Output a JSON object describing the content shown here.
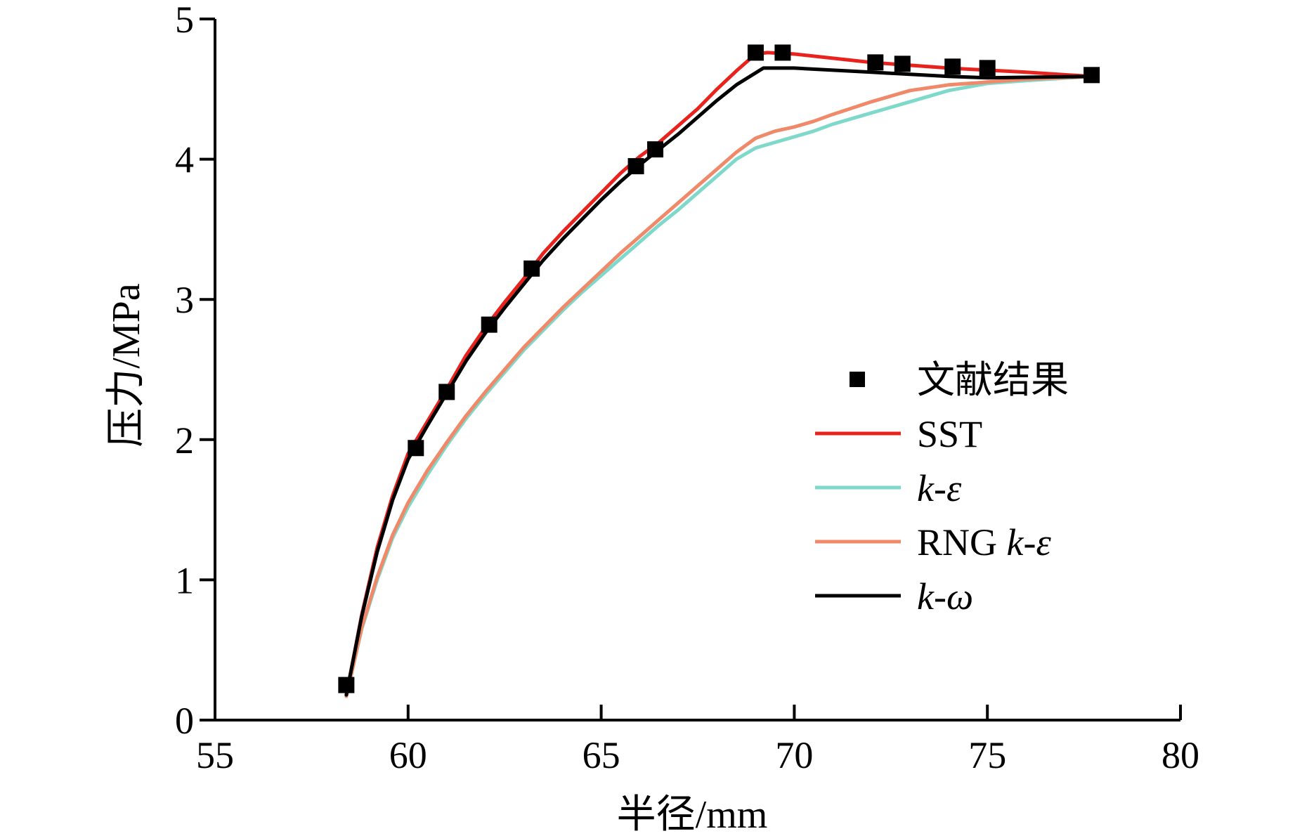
{
  "chart_data": {
    "type": "line",
    "xlabel": "半径/mm",
    "ylabel": "压力/MPa",
    "xlim": [
      55,
      80
    ],
    "ylim": [
      0,
      5
    ],
    "xticks": [
      55,
      60,
      65,
      70,
      75,
      80
    ],
    "yticks": [
      0,
      1,
      2,
      3,
      4,
      5
    ],
    "grid": false,
    "legend_position": "right",
    "series": [
      {
        "name": "文献结果",
        "kind": "markers",
        "marker": "square",
        "color": "#000000",
        "x": [
          58.4,
          60.2,
          61.0,
          62.1,
          63.2,
          65.9,
          66.4,
          69.0,
          69.7,
          72.1,
          72.8,
          74.1,
          75.0,
          77.7
        ],
        "y": [
          0.25,
          1.94,
          2.34,
          2.82,
          3.22,
          3.95,
          4.07,
          4.76,
          4.76,
          4.69,
          4.68,
          4.66,
          4.65,
          4.6
        ]
      },
      {
        "name": "SST",
        "kind": "line",
        "color": "#e8231e",
        "x": [
          58.4,
          58.8,
          59.2,
          59.6,
          60.0,
          60.5,
          61.0,
          61.5,
          62.0,
          62.5,
          63.0,
          63.5,
          64.0,
          64.5,
          65.0,
          65.5,
          66.0,
          66.5,
          67.0,
          67.5,
          68.0,
          68.5,
          69.0,
          69.3,
          70.0,
          72.0,
          74.0,
          76.0,
          77.7
        ],
        "y": [
          0.18,
          0.75,
          1.23,
          1.6,
          1.9,
          2.13,
          2.36,
          2.6,
          2.8,
          2.98,
          3.15,
          3.33,
          3.48,
          3.62,
          3.76,
          3.9,
          4.02,
          4.12,
          4.24,
          4.36,
          4.5,
          4.63,
          4.75,
          4.76,
          4.75,
          4.69,
          4.65,
          4.62,
          4.59
        ]
      },
      {
        "name": "k-ε",
        "kind": "line",
        "color": "#7fd9cb",
        "x": [
          58.4,
          58.8,
          59.2,
          59.6,
          60.0,
          60.5,
          61.0,
          61.5,
          62.0,
          62.5,
          63.0,
          63.5,
          64.0,
          64.5,
          65.0,
          65.5,
          66.0,
          66.5,
          67.0,
          67.5,
          68.0,
          68.5,
          69.0,
          69.5,
          70.0,
          70.5,
          71.0,
          72.0,
          73.0,
          74.0,
          75.0,
          76.0,
          77.7
        ],
        "y": [
          0.17,
          0.65,
          1.0,
          1.3,
          1.52,
          1.75,
          1.96,
          2.15,
          2.32,
          2.48,
          2.64,
          2.78,
          2.92,
          3.05,
          3.17,
          3.29,
          3.41,
          3.53,
          3.64,
          3.76,
          3.88,
          4.0,
          4.08,
          4.12,
          4.16,
          4.2,
          4.25,
          4.33,
          4.41,
          4.49,
          4.54,
          4.56,
          4.59
        ]
      },
      {
        "name": "RNG k-ε",
        "kind": "line",
        "color": "#f0896a",
        "x": [
          58.4,
          58.8,
          59.2,
          59.6,
          60.0,
          60.5,
          61.0,
          61.5,
          62.0,
          62.5,
          63.0,
          63.5,
          64.0,
          64.5,
          65.0,
          65.5,
          66.0,
          66.5,
          67.0,
          67.5,
          68.0,
          68.5,
          69.0,
          69.5,
          70.0,
          70.5,
          71.0,
          72.0,
          73.0,
          74.0,
          75.0,
          76.0,
          77.7
        ],
        "y": [
          0.17,
          0.66,
          1.02,
          1.32,
          1.55,
          1.78,
          1.98,
          2.17,
          2.34,
          2.5,
          2.66,
          2.8,
          2.94,
          3.07,
          3.2,
          3.33,
          3.45,
          3.57,
          3.69,
          3.81,
          3.93,
          4.05,
          4.15,
          4.2,
          4.23,
          4.27,
          4.32,
          4.41,
          4.49,
          4.53,
          4.55,
          4.57,
          4.59
        ]
      },
      {
        "name": "k-ω",
        "kind": "line",
        "color": "#000000",
        "x": [
          58.4,
          58.8,
          59.2,
          59.6,
          60.0,
          60.5,
          61.0,
          61.5,
          62.0,
          62.5,
          63.0,
          63.5,
          64.0,
          64.5,
          65.0,
          65.5,
          66.0,
          66.5,
          67.0,
          67.5,
          68.0,
          68.5,
          69.2,
          70.0,
          72.0,
          74.0,
          75.0,
          77.7
        ],
        "y": [
          0.18,
          0.74,
          1.2,
          1.57,
          1.86,
          2.1,
          2.33,
          2.56,
          2.76,
          2.94,
          3.11,
          3.28,
          3.43,
          3.57,
          3.71,
          3.84,
          3.96,
          4.07,
          4.18,
          4.3,
          4.42,
          4.53,
          4.65,
          4.65,
          4.62,
          4.59,
          4.58,
          4.59
        ]
      }
    ]
  }
}
